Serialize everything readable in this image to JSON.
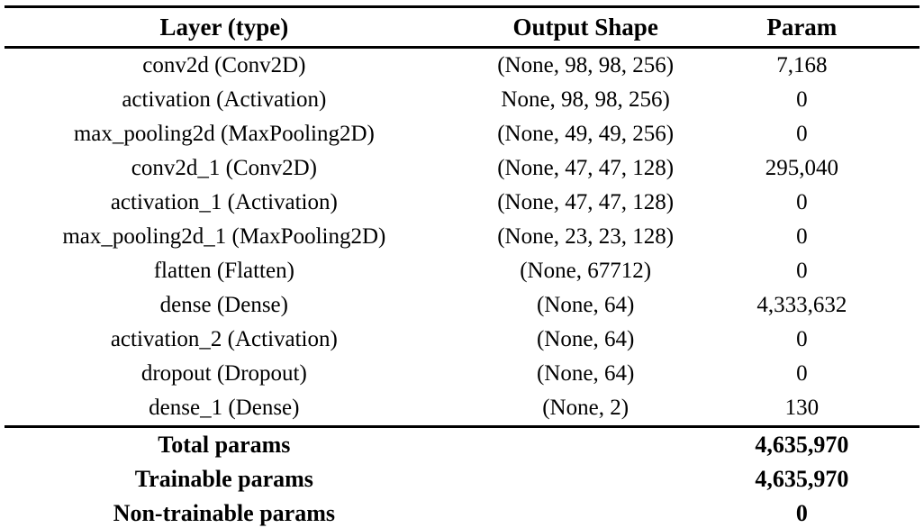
{
  "table": {
    "headers": [
      "Layer (type)",
      "Output Shape",
      "Param"
    ],
    "rows": [
      [
        "conv2d (Conv2D)",
        "(None, 98, 98, 256)",
        "7,168"
      ],
      [
        "activation (Activation)",
        "None, 98, 98, 256)",
        "0"
      ],
      [
        "max_pooling2d (MaxPooling2D)",
        "(None, 49, 49, 256)",
        "0"
      ],
      [
        "conv2d_1 (Conv2D)",
        "(None, 47, 47, 128)",
        "295,040"
      ],
      [
        "activation_1 (Activation)",
        "(None, 47, 47, 128)",
        "0"
      ],
      [
        "max_pooling2d_1 (MaxPooling2D)",
        "(None, 23, 23, 128)",
        "0"
      ],
      [
        "flatten (Flatten)",
        "(None, 67712)",
        "0"
      ],
      [
        "dense (Dense)",
        "(None, 64)",
        "4,333,632"
      ],
      [
        "activation_2 (Activation)",
        "(None, 64)",
        "0"
      ],
      [
        "dropout (Dropout)",
        "(None, 64)",
        "0"
      ],
      [
        "dense_1 (Dense)",
        "(None, 2)",
        "130"
      ]
    ],
    "summary": [
      {
        "label": "Total params",
        "value": "4,635,970"
      },
      {
        "label": "Trainable params",
        "value": "4,635,970"
      },
      {
        "label": "Non-trainable params",
        "value": "0"
      }
    ]
  },
  "colors": {
    "text": "#000000",
    "background": "#ffffff",
    "rule": "#000000"
  }
}
